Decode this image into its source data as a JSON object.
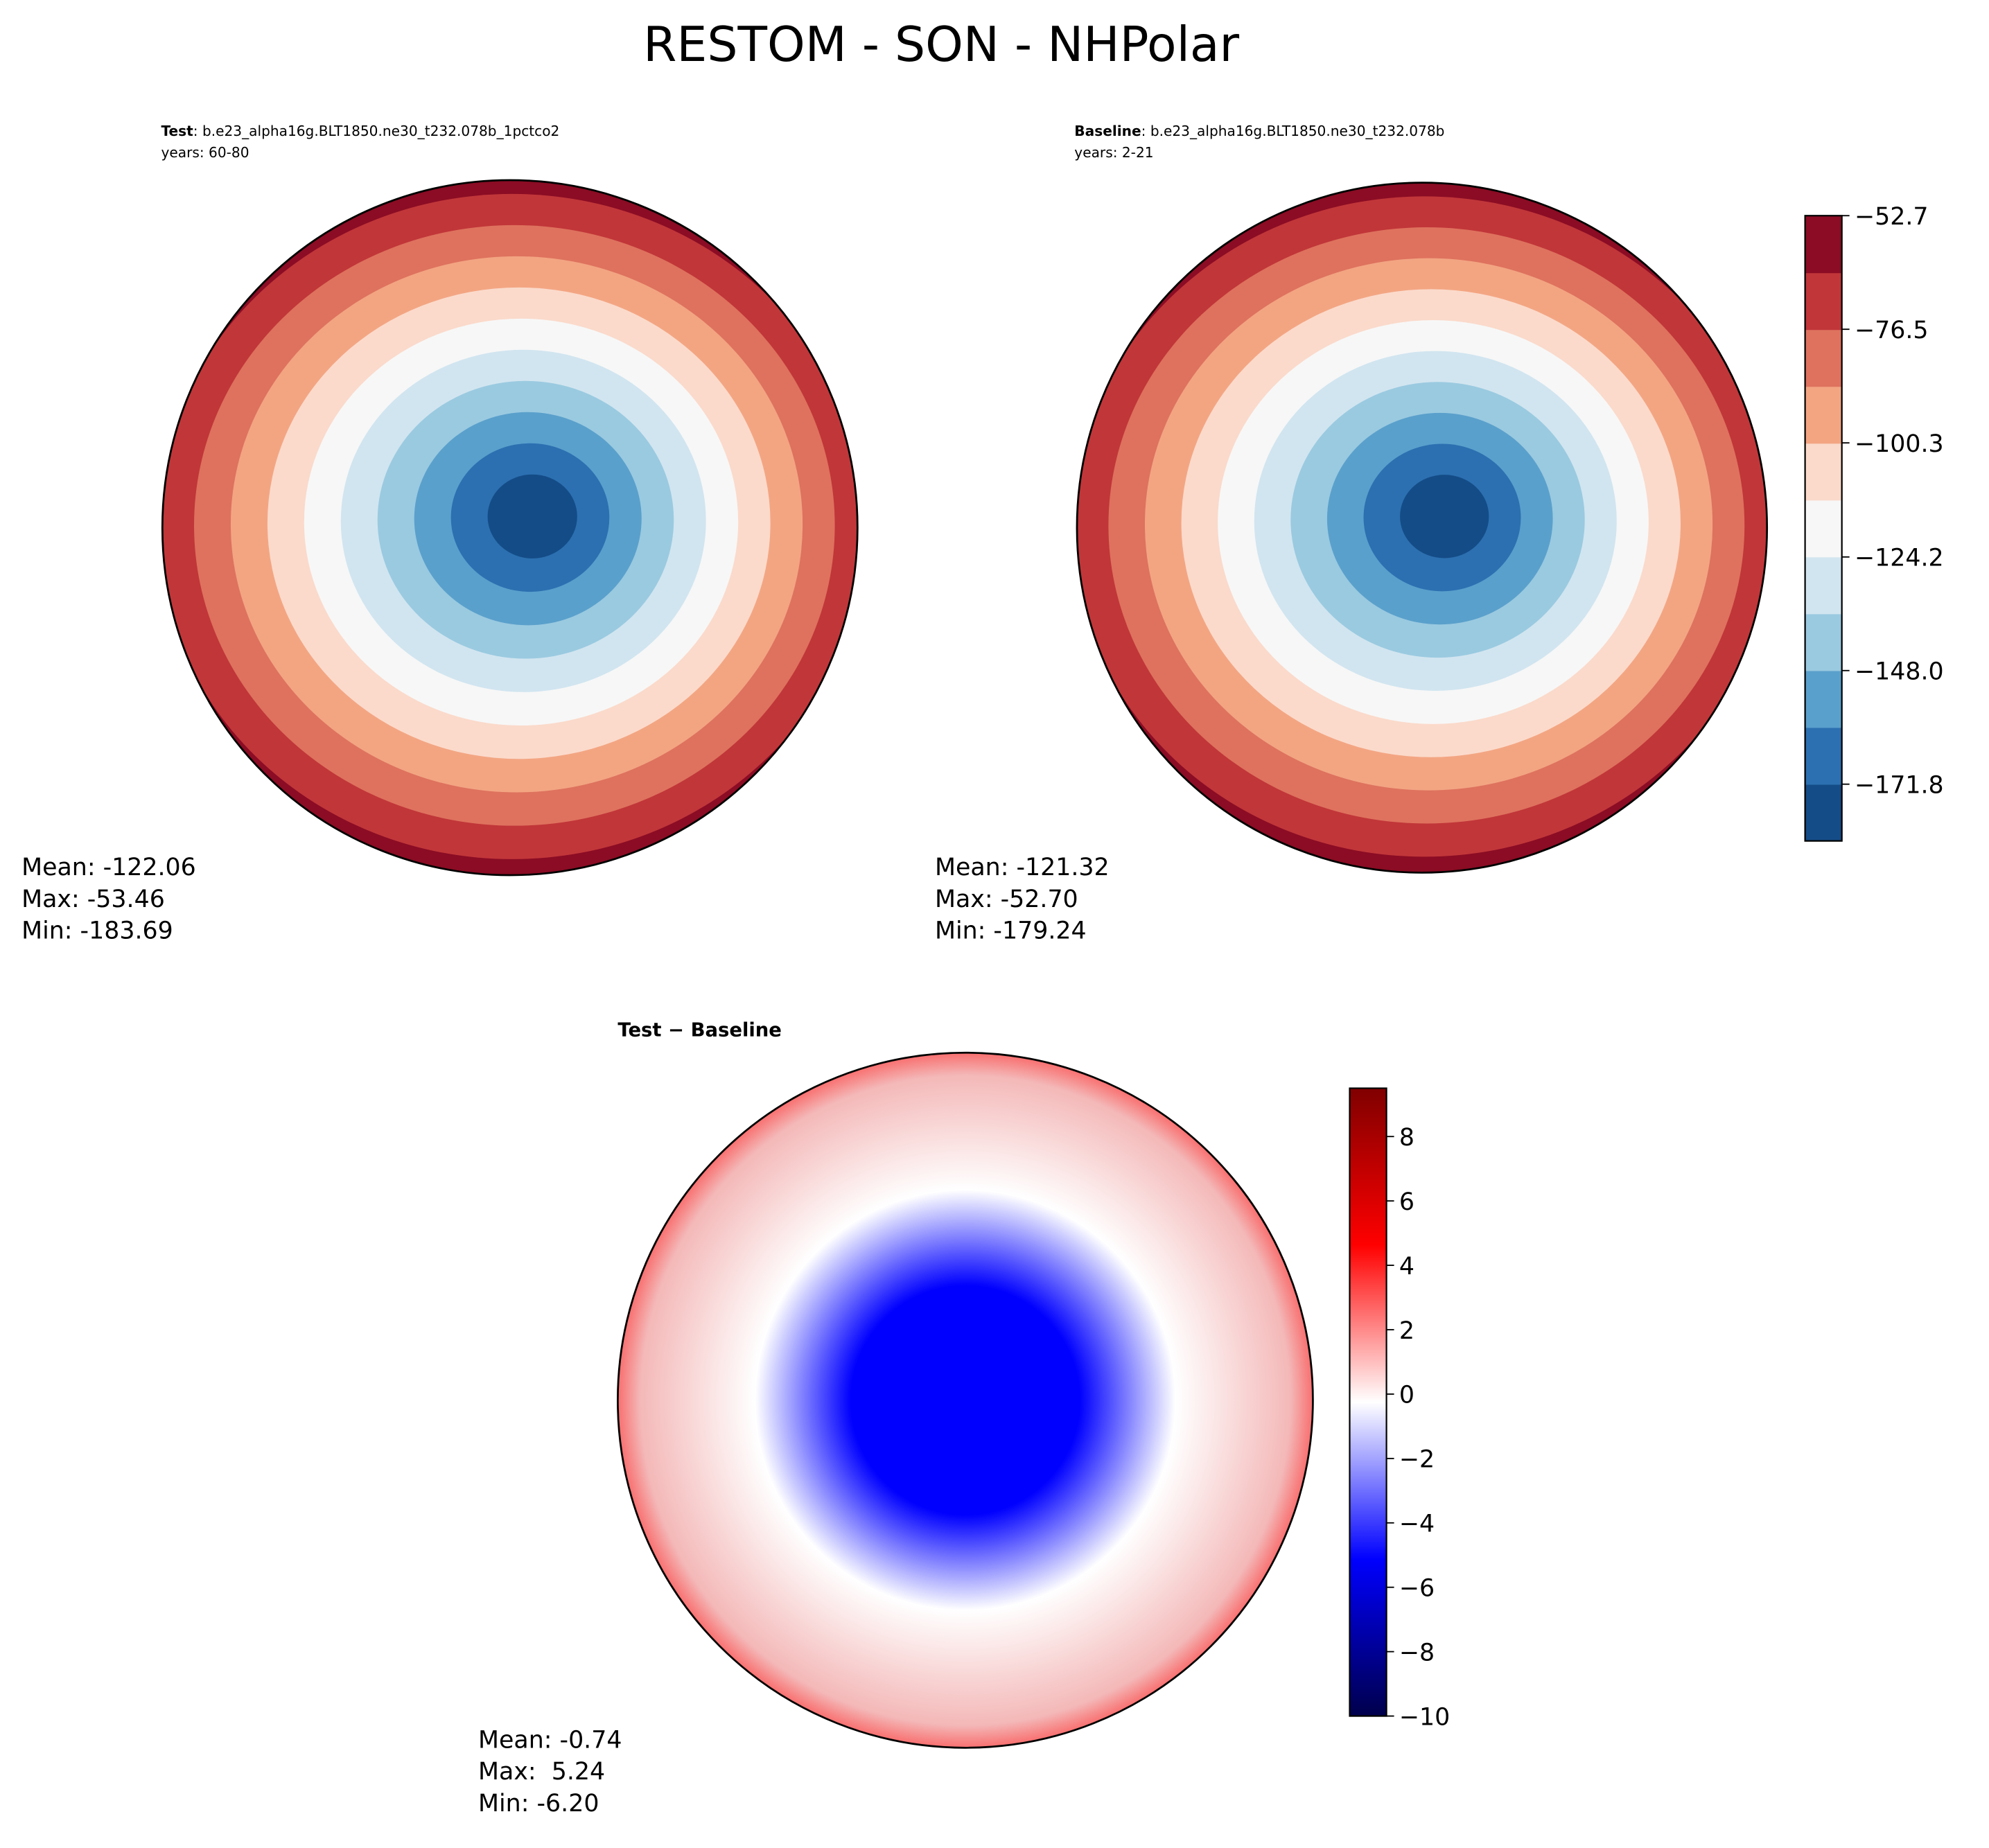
{
  "title": "RESTOM - SON - NHPolar",
  "chart_data": [
    {
      "type": "map",
      "title_bold": "Test",
      "title": ": b.e23_alpha16g.BLT1850.ne30_t232.078b_1pctco2",
      "subtitle": "years: 60-80",
      "stats": [
        "Mean: -122.06",
        "Max: -53.46",
        "Min: -183.69"
      ]
    },
    {
      "type": "map",
      "title_bold": "Baseline",
      "title": ": b.e23_alpha16g.BLT1850.ne30_t232.078b",
      "subtitle": "years: 2-21",
      "stats": [
        "Mean: -121.32",
        "Max: -52.70",
        "Min: -179.24"
      ],
      "colorbar": {
        "ylim": [
          -183.69,
          -52.7
        ],
        "yticks": [
          {
            "value": -52.7,
            "label": "−52.7"
          },
          {
            "value": -76.5,
            "label": "−76.5"
          },
          {
            "value": -100.3,
            "label": "−100.3"
          },
          {
            "value": -124.2,
            "label": "−124.2"
          },
          {
            "value": -148.0,
            "label": "−148.0"
          },
          {
            "value": -171.8,
            "label": "−171.8"
          }
        ],
        "colors": [
          "#144c87",
          "#2c70b1",
          "#5aa0cc",
          "#9acae0",
          "#d1e5f0",
          "#f7f7f7",
          "#fbdacb",
          "#f3a582",
          "#de725e",
          "#c13639",
          "#8b0c24"
        ]
      }
    },
    {
      "type": "map",
      "title": "Test − Baseline",
      "stats": [
        "Mean: -0.74",
        "Max:  5.24",
        "Min: -6.20"
      ],
      "colorbar": {
        "ylim": [
          -10,
          9.5
        ],
        "yticks": [
          {
            "value": -10,
            "label": "−10"
          },
          {
            "value": -8,
            "label": "−8"
          },
          {
            "value": -6,
            "label": "−6"
          },
          {
            "value": -4,
            "label": "−4"
          },
          {
            "value": -2,
            "label": "−2"
          },
          0,
          2,
          4,
          6,
          8
        ],
        "colors": [
          "#00004c",
          "#0000ff",
          "#ffffff",
          "#ff0000",
          "#800000"
        ]
      }
    }
  ]
}
